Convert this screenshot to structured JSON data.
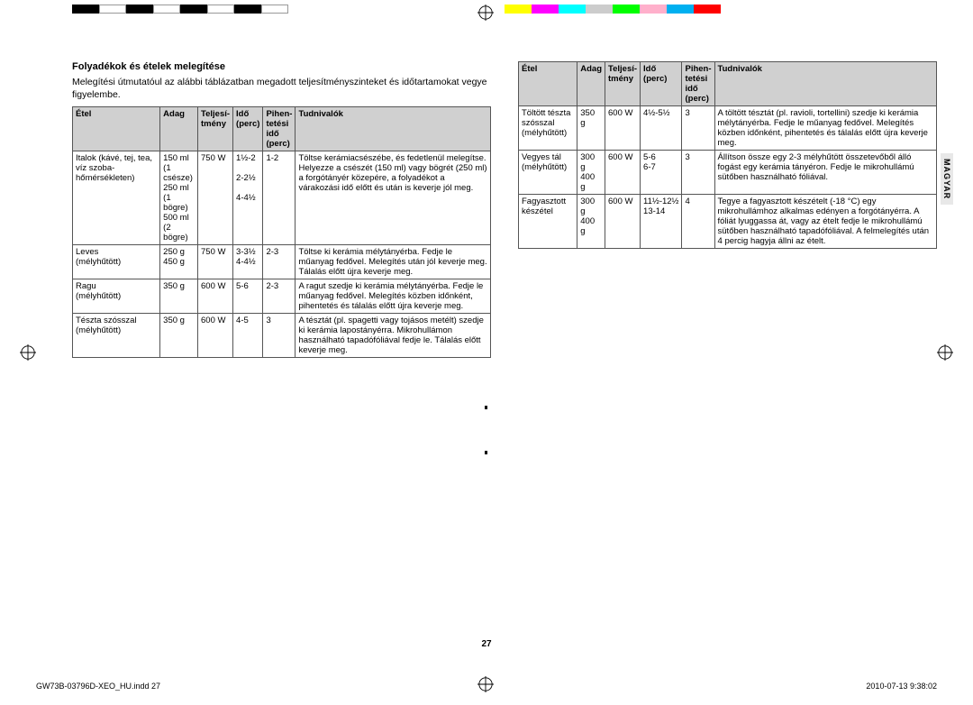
{
  "colorbars_left": [
    "#000000",
    "#ffffff",
    "#000000",
    "#ffffff",
    "#000000",
    "#ffffff",
    "#000000",
    "#ffffff"
  ],
  "colorbars_right": [
    "#ffff00",
    "#ff00ff",
    "#00ffff",
    "#cccccc",
    "#00ff00",
    "#ffb0cb",
    "#00b0f0",
    "#ff0000"
  ],
  "section_title": "Folyadékok és ételek melegítése",
  "intro": "Melegítési útmutatóul az alábbi táblázatban megadott teljesítményszinteket és időtartamokat vegye figyelembe.",
  "headers": {
    "col1": "Étel",
    "col2": "Adag",
    "col3": "Teljesí-\ntmény",
    "col4": "Idő\n(perc)",
    "col5": "Pihen-\ntetési\nidő\n(perc)",
    "col6": "Tudnivalók"
  },
  "left_rows": [
    {
      "etel": "Italok (kávé, tej, tea, víz szoba-hőmérsékleten)",
      "adag": "150 ml\n(1 csésze)\n250 ml\n(1 bögre)\n500 ml\n(2 bögre)",
      "telj": "750 W",
      "ido": "1½-2\n\n2-2½\n\n4-4½",
      "pihen": "1-2",
      "tud": "Töltse kerámiacsészébe, és fedetlenül melegítse. Helyezze a csészét (150 ml) vagy bögrét (250 ml) a forgótányér közepére, a folyadékot a várakozási idő előtt és után is keverje jól meg."
    },
    {
      "etel": "Leves\n(mélyhűtött)",
      "adag": "250 g\n450 g",
      "telj": "750 W",
      "ido": "3-3½\n4-4½",
      "pihen": "2-3",
      "tud": "Töltse ki kerámia mélytányérba. Fedje le műanyag fedővel. Melegítés után jól keverje meg. Tálalás előtt újra keverje meg."
    },
    {
      "etel": "Ragu\n(mélyhűtött)",
      "adag": "350 g",
      "telj": "600 W",
      "ido": "5-6",
      "pihen": "2-3",
      "tud": "A ragut szedje ki kerámia mélytányérba. Fedje le műanyag fedővel. Melegítés közben időnként, pihentetés és tálalás előtt újra keverje meg."
    },
    {
      "etel": "Tészta szósszal\n(mélyhűtött)",
      "adag": "350 g",
      "telj": "600 W",
      "ido": "4-5",
      "pihen": "3",
      "tud": "A tésztát (pl. spagetti vagy tojásos metélt) szedje ki kerámia lapostányérra. Mikrohullámon használható tapadófóliával fedje le. Tálalás előtt keverje meg."
    }
  ],
  "right_rows": [
    {
      "etel": "Töltött tészta szósszal\n(mélyhűtött)",
      "adag": "350 g",
      "telj": "600 W",
      "ido": "4½-5½",
      "pihen": "3",
      "tud": "A töltött tésztát (pl. ravioli, tortellini) szedje ki kerámia mélytányérba. Fedje le műanyag fedővel. Melegítés közben időnként, pihentetés és tálalás előtt újra keverje meg."
    },
    {
      "etel": "Vegyes tál\n(mélyhűtött)",
      "adag": "300 g\n400 g",
      "telj": "600 W",
      "ido": "5-6\n6-7",
      "pihen": "3",
      "tud": "Állítson össze egy 2-3 mélyhűtött összetevőből álló fogást egy kerámia tányéron. Fedje le mikrohullámú sütőben használható fóliával."
    },
    {
      "etel": "Fagyasztott\nkészétel",
      "adag": "300 g\n400 g",
      "telj": "600 W",
      "ido": "11½-12½\n13-14",
      "pihen": "4",
      "tud": "Tegye a fagyasztott készételt (-18 °C) egy mikrohullámhoz alkalmas edényen a forgótányérra. A fóliát lyuggassa át, vagy az ételt fedje le mikrohullámú sütőben használható tapadófóliával. A felmelegítés után 4 percig hagyja állni az ételt."
    }
  ],
  "side_tab": "MAGYAR",
  "page_number": "27",
  "footer_left": "GW73B-03796D-XEO_HU.indd   27",
  "footer_right": "2010-07-13    9:38:02"
}
